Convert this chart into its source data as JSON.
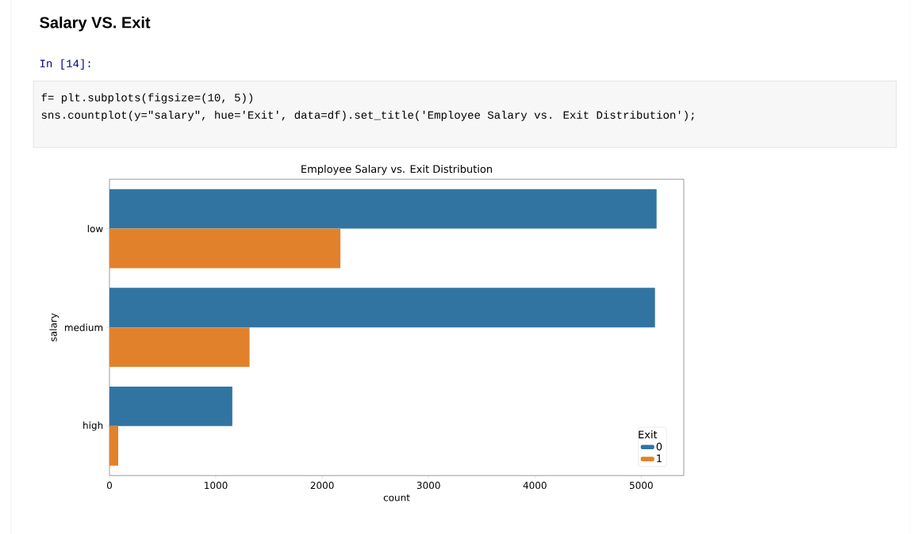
{
  "chart_data": {
    "type": "bar",
    "orientation": "horizontal",
    "title": "Employee Salary vs. Exit Distribution",
    "xlabel": "count",
    "ylabel": "salary",
    "legend_title": "Exit",
    "categories": [
      "low",
      "medium",
      "high"
    ],
    "series": [
      {
        "name": "0",
        "color": "#3274a1",
        "values": [
          5144,
          5129,
          1155
        ]
      },
      {
        "name": "1",
        "color": "#e1812c",
        "values": [
          2172,
          1317,
          82
        ]
      }
    ],
    "xlim": [
      0,
      5400
    ],
    "xticks": [
      0,
      1000,
      2000,
      3000,
      4000,
      5000
    ],
    "grid": false,
    "legend": "bottom right",
    "annotations": [
      "Salary VS. Exit",
      "In [14]:",
      "f= plt.subplots(figsize=(10, 5))",
      "sns.countplot(y=\"salary\", hue='Exit', data=df).set_title('Employee Salary vs. Exit Distribution');"
    ]
  }
}
